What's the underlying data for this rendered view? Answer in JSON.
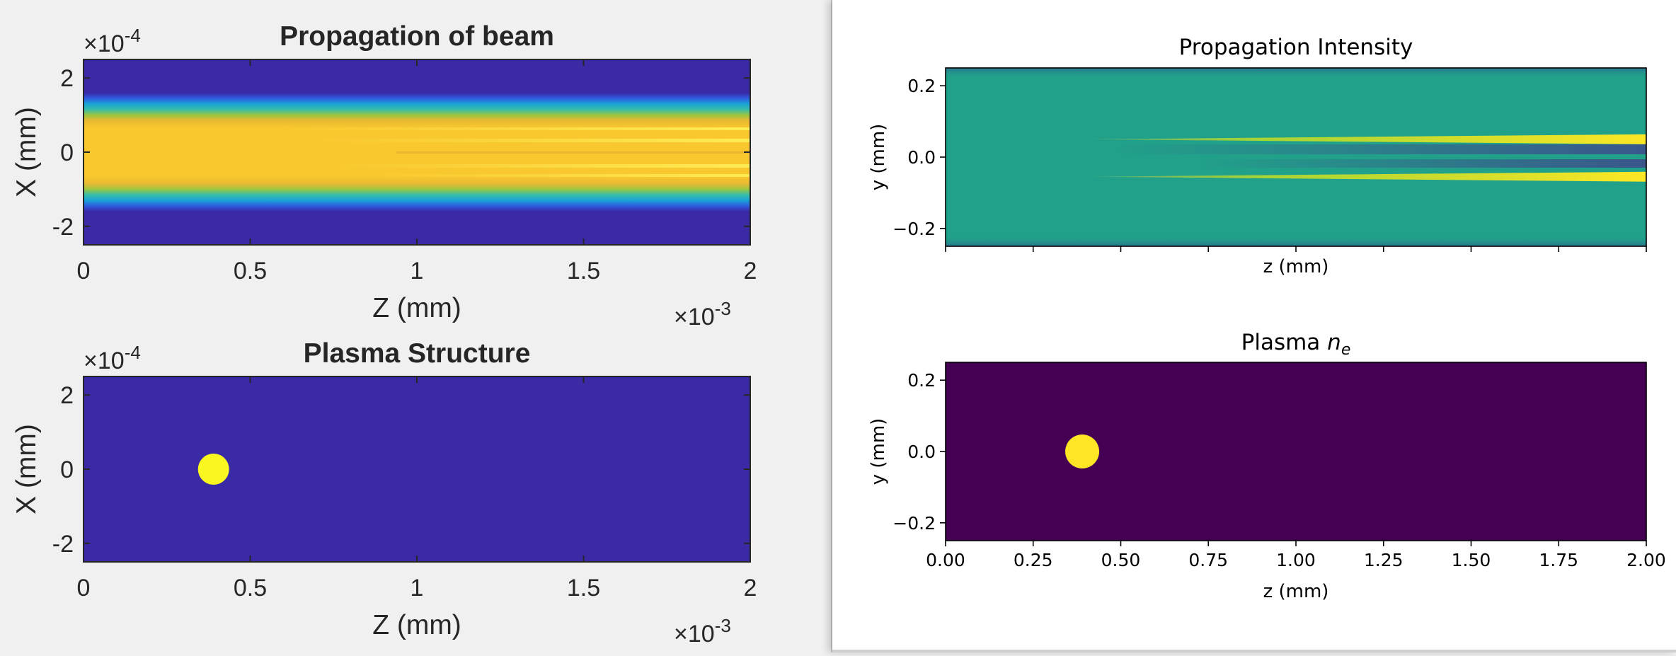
{
  "left_figure": {
    "top": {
      "title": "Propagation of beam",
      "xlabel": "Z (mm)",
      "ylabel": "X (mm)",
      "x_exponent_base": "×10",
      "x_exponent_power": "-3",
      "y_exponent_base": "×10",
      "y_exponent_power": "-4",
      "xticks": [
        "0",
        "0.5",
        "1",
        "1.5",
        "2"
      ],
      "yticks": [
        "-2",
        "0",
        "2"
      ],
      "colors": {
        "background": "#3b2aa6",
        "core": "#f9c72e",
        "edge_mid": "#1db0c0",
        "edge_green": "#86c84a"
      }
    },
    "bottom": {
      "title": "Plasma Structure",
      "xlabel": "Z (mm)",
      "ylabel": "X (mm)",
      "x_exponent_base": "×10",
      "x_exponent_power": "-3",
      "y_exponent_base": "×10",
      "y_exponent_power": "-4",
      "xticks": [
        "0",
        "0.5",
        "1",
        "1.5",
        "2"
      ],
      "yticks": [
        "-2",
        "0",
        "2"
      ],
      "colors": {
        "background": "#3b2aa6",
        "dot": "#f9f620"
      }
    }
  },
  "right_figure": {
    "top": {
      "title": "Propagation Intensity",
      "xlabel": "z (mm)",
      "ylabel": "y (mm)",
      "yticks": [
        "0.2",
        "0.0",
        "−0.2"
      ],
      "colors": {
        "background": "#21a08a",
        "filament": "#fde725",
        "dark_band": "#3b528b",
        "edge": "#2c728e"
      }
    },
    "bottom": {
      "title_prefix": "Plasma ",
      "title_symbol": "n",
      "title_subscript": "e",
      "xlabel": "z (mm)",
      "ylabel": "y (mm)",
      "xticks": [
        "0.00",
        "0.25",
        "0.50",
        "0.75",
        "1.00",
        "1.25",
        "1.50",
        "1.75",
        "2.00"
      ],
      "yticks": [
        "0.2",
        "0.0",
        "−0.2"
      ],
      "colors": {
        "background": "#440154",
        "dot": "#fde725"
      }
    }
  },
  "chart_data": [
    {
      "type": "heatmap",
      "title": "Propagation of beam",
      "xlabel": "Z (mm)",
      "ylabel": "X (mm)",
      "x_scale_exponent": -3,
      "y_scale_exponent": -4,
      "xlim": [
        0,
        2
      ],
      "ylim": [
        2.5,
        -2.5
      ],
      "x_range_mm": [
        0,
        0.002
      ],
      "y_range_mm": [
        -0.00025,
        0.00025
      ],
      "description_of_field": {
        "beam_half_width": 1.2,
        "beam_center": 0
      }
    },
    {
      "type": "heatmap",
      "title": "Plasma Structure",
      "xlabel": "Z (mm)",
      "ylabel": "X (mm)",
      "x_scale_exponent": -3,
      "y_scale_exponent": -4,
      "xlim": [
        0,
        2
      ],
      "ylim": [
        2.5,
        -2.5
      ],
      "plasma_center": {
        "z": 0.39,
        "x": 0
      },
      "plasma_radius": 0.5
    },
    {
      "type": "heatmap",
      "title": "Propagation Intensity",
      "xlabel": "z (mm)",
      "ylabel": "y (mm)",
      "xlim": [
        0,
        2
      ],
      "ylim": [
        -0.25,
        0.25
      ],
      "filaments": [
        {
          "y": 0.05,
          "z_start": 0.4
        },
        {
          "y": -0.055,
          "z_start": 0.4
        }
      ]
    },
    {
      "type": "heatmap",
      "title": "Plasma n_e",
      "xlabel": "z (mm)",
      "ylabel": "y (mm)",
      "xlim": [
        0,
        2
      ],
      "ylim": [
        -0.25,
        0.25
      ],
      "plasma_center": {
        "z": 0.39,
        "y": 0.0
      },
      "plasma_radius": 0.05
    }
  ]
}
